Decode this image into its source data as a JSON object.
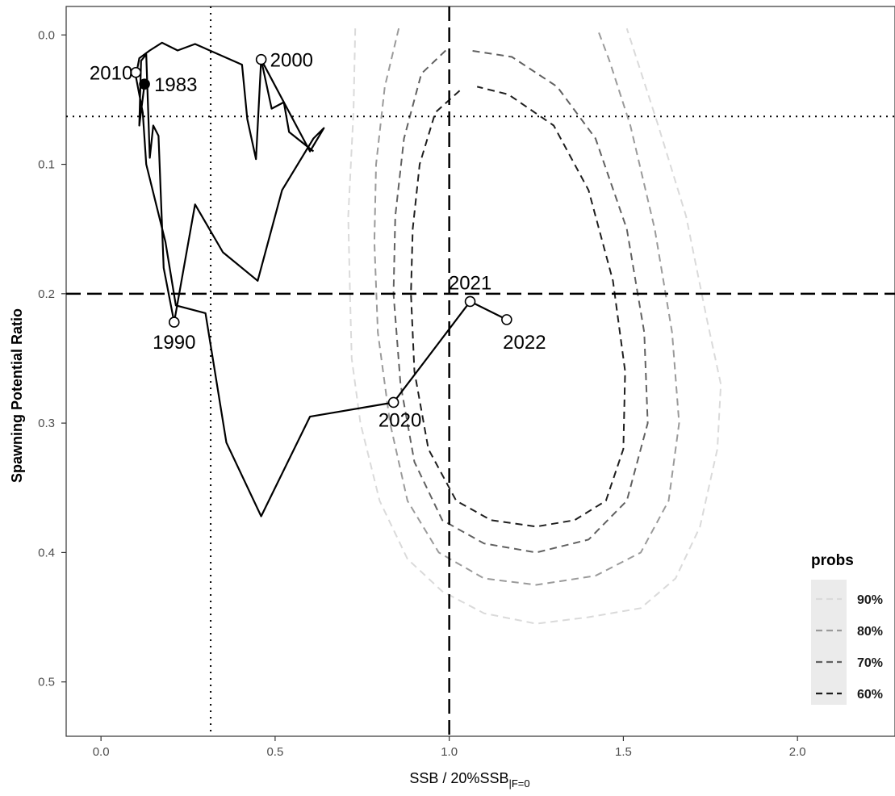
{
  "chart_data": {
    "type": "line",
    "xlabel": "SSB / 20%SSB",
    "xlabel_subscript": "|F=0",
    "ylabel": "Spawning Potential Ratio",
    "xlim": [
      -0.1,
      2.28
    ],
    "ylim": [
      0.542,
      -0.022
    ],
    "y_reversed": true,
    "x_ticks": [
      {
        "value": 0.0,
        "label": "0.0"
      },
      {
        "value": 0.5,
        "label": "0.5"
      },
      {
        "value": 1.0,
        "label": "1.0"
      },
      {
        "value": 1.5,
        "label": "1.5"
      },
      {
        "value": 2.0,
        "label": "2.0"
      }
    ],
    "y_ticks": [
      {
        "value": 0.0,
        "label": "0.0"
      },
      {
        "value": 0.1,
        "label": "0.1"
      },
      {
        "value": 0.2,
        "label": "0.2"
      },
      {
        "value": 0.3,
        "label": "0.3"
      },
      {
        "value": 0.4,
        "label": "0.4"
      },
      {
        "value": 0.5,
        "label": "0.5"
      }
    ],
    "grid": false,
    "reference_lines": [
      {
        "orientation": "vertical",
        "value": 1.0,
        "style": "dashed"
      },
      {
        "orientation": "horizontal",
        "value": 0.2,
        "style": "dashed"
      },
      {
        "orientation": "vertical",
        "value": 0.315,
        "style": "dotted"
      },
      {
        "orientation": "horizontal",
        "value": 0.063,
        "style": "dotted"
      }
    ],
    "trajectory": [
      [
        0.125,
        0.038
      ],
      [
        0.11,
        0.07
      ],
      [
        0.115,
        0.02
      ],
      [
        0.13,
        0.015
      ],
      [
        0.14,
        0.095
      ],
      [
        0.15,
        0.07
      ],
      [
        0.165,
        0.078
      ],
      [
        0.18,
        0.18
      ],
      [
        0.21,
        0.222
      ],
      [
        0.27,
        0.131
      ],
      [
        0.35,
        0.168
      ],
      [
        0.45,
        0.19
      ],
      [
        0.52,
        0.12
      ],
      [
        0.61,
        0.08
      ],
      [
        0.64,
        0.072
      ],
      [
        0.6,
        0.09
      ],
      [
        0.46,
        0.019
      ],
      [
        0.445,
        0.096
      ],
      [
        0.42,
        0.065
      ],
      [
        0.405,
        0.023
      ],
      [
        0.27,
        0.007
      ],
      [
        0.22,
        0.012
      ],
      [
        0.175,
        0.006
      ],
      [
        0.14,
        0.012
      ],
      [
        0.11,
        0.018
      ],
      [
        0.1,
        0.032
      ],
      [
        0.12,
        0.06
      ],
      [
        0.13,
        0.1
      ],
      [
        0.185,
        0.16
      ],
      [
        0.215,
        0.209
      ],
      [
        0.3,
        0.215
      ],
      [
        0.36,
        0.315
      ],
      [
        0.46,
        0.372
      ],
      [
        0.6,
        0.295
      ],
      [
        0.84,
        0.284
      ],
      [
        1.06,
        0.206
      ],
      [
        1.165,
        0.22
      ]
    ],
    "extra_segments": [
      [
        [
          0.46,
          0.019
        ],
        [
          0.49,
          0.057
        ],
        [
          0.525,
          0.052
        ],
        [
          0.54,
          0.075
        ],
        [
          0.61,
          0.09
        ]
      ]
    ],
    "points": [
      {
        "year": "1983",
        "x": 0.125,
        "y": 0.038,
        "marker": "filled"
      },
      {
        "year": "1990",
        "x": 0.21,
        "y": 0.222,
        "marker": "open"
      },
      {
        "year": "2000",
        "x": 0.46,
        "y": 0.019,
        "marker": "open"
      },
      {
        "year": "2010",
        "x": 0.1,
        "y": 0.029,
        "marker": "open"
      },
      {
        "year": "2020",
        "x": 0.84,
        "y": 0.284,
        "marker": "open"
      },
      {
        "year": "2021",
        "x": 1.06,
        "y": 0.206,
        "marker": "open"
      },
      {
        "year": "2022",
        "x": 1.165,
        "y": 0.22,
        "marker": "open"
      }
    ],
    "contours": [
      {
        "name": "90%",
        "color": "#dadada",
        "values": [
          [
            0.73,
            -0.005
          ],
          [
            0.725,
            0.06
          ],
          [
            0.71,
            0.14
          ],
          [
            0.715,
            0.2
          ],
          [
            0.72,
            0.25
          ],
          [
            0.745,
            0.3
          ],
          [
            0.8,
            0.36
          ],
          [
            0.88,
            0.405
          ],
          [
            0.98,
            0.43
          ],
          [
            1.1,
            0.447
          ],
          [
            1.25,
            0.455
          ],
          [
            1.4,
            0.45
          ],
          [
            1.55,
            0.443
          ],
          [
            1.65,
            0.42
          ],
          [
            1.72,
            0.38
          ],
          [
            1.77,
            0.32
          ],
          [
            1.78,
            0.27
          ],
          [
            1.74,
            0.22
          ],
          [
            1.68,
            0.14
          ],
          [
            1.6,
            0.07
          ],
          [
            1.54,
            0.02
          ],
          [
            1.51,
            -0.005
          ]
        ]
      },
      {
        "name": "80%",
        "color": "#9a9a9a",
        "values": [
          [
            0.855,
            -0.005
          ],
          [
            0.815,
            0.04
          ],
          [
            0.79,
            0.1
          ],
          [
            0.785,
            0.16
          ],
          [
            0.795,
            0.23
          ],
          [
            0.83,
            0.3
          ],
          [
            0.88,
            0.36
          ],
          [
            0.97,
            0.4
          ],
          [
            1.1,
            0.42
          ],
          [
            1.25,
            0.425
          ],
          [
            1.42,
            0.418
          ],
          [
            1.55,
            0.4
          ],
          [
            1.63,
            0.36
          ],
          [
            1.66,
            0.3
          ],
          [
            1.64,
            0.23
          ],
          [
            1.59,
            0.15
          ],
          [
            1.52,
            0.07
          ],
          [
            1.46,
            0.02
          ],
          [
            1.425,
            -0.005
          ]
        ]
      },
      {
        "name": "70%",
        "color": "#616161",
        "values": [
          [
            0.99,
            0.012
          ],
          [
            0.92,
            0.03
          ],
          [
            0.87,
            0.08
          ],
          [
            0.845,
            0.14
          ],
          [
            0.84,
            0.2
          ],
          [
            0.86,
            0.27
          ],
          [
            0.9,
            0.33
          ],
          [
            0.98,
            0.375
          ],
          [
            1.1,
            0.393
          ],
          [
            1.25,
            0.4
          ],
          [
            1.4,
            0.39
          ],
          [
            1.51,
            0.36
          ],
          [
            1.57,
            0.3
          ],
          [
            1.56,
            0.23
          ],
          [
            1.51,
            0.15
          ],
          [
            1.42,
            0.08
          ],
          [
            1.31,
            0.04
          ],
          [
            1.18,
            0.017
          ],
          [
            1.06,
            0.012
          ]
        ]
      },
      {
        "name": "60%",
        "color": "#1e1e1e",
        "values": [
          [
            1.03,
            0.043
          ],
          [
            0.96,
            0.06
          ],
          [
            0.915,
            0.1
          ],
          [
            0.895,
            0.15
          ],
          [
            0.89,
            0.2
          ],
          [
            0.9,
            0.26
          ],
          [
            0.94,
            0.32
          ],
          [
            1.02,
            0.36
          ],
          [
            1.12,
            0.375
          ],
          [
            1.25,
            0.38
          ],
          [
            1.36,
            0.375
          ],
          [
            1.45,
            0.36
          ],
          [
            1.5,
            0.32
          ],
          [
            1.505,
            0.26
          ],
          [
            1.47,
            0.19
          ],
          [
            1.4,
            0.12
          ],
          [
            1.3,
            0.07
          ],
          [
            1.17,
            0.046
          ],
          [
            1.08,
            0.04
          ]
        ]
      }
    ],
    "legend": {
      "title": "probs",
      "position": "bottom-right",
      "entries": [
        {
          "label": "90%",
          "color": "#dadada"
        },
        {
          "label": "80%",
          "color": "#9a9a9a"
        },
        {
          "label": "70%",
          "color": "#616161"
        },
        {
          "label": "60%",
          "color": "#1e1e1e"
        }
      ]
    }
  }
}
